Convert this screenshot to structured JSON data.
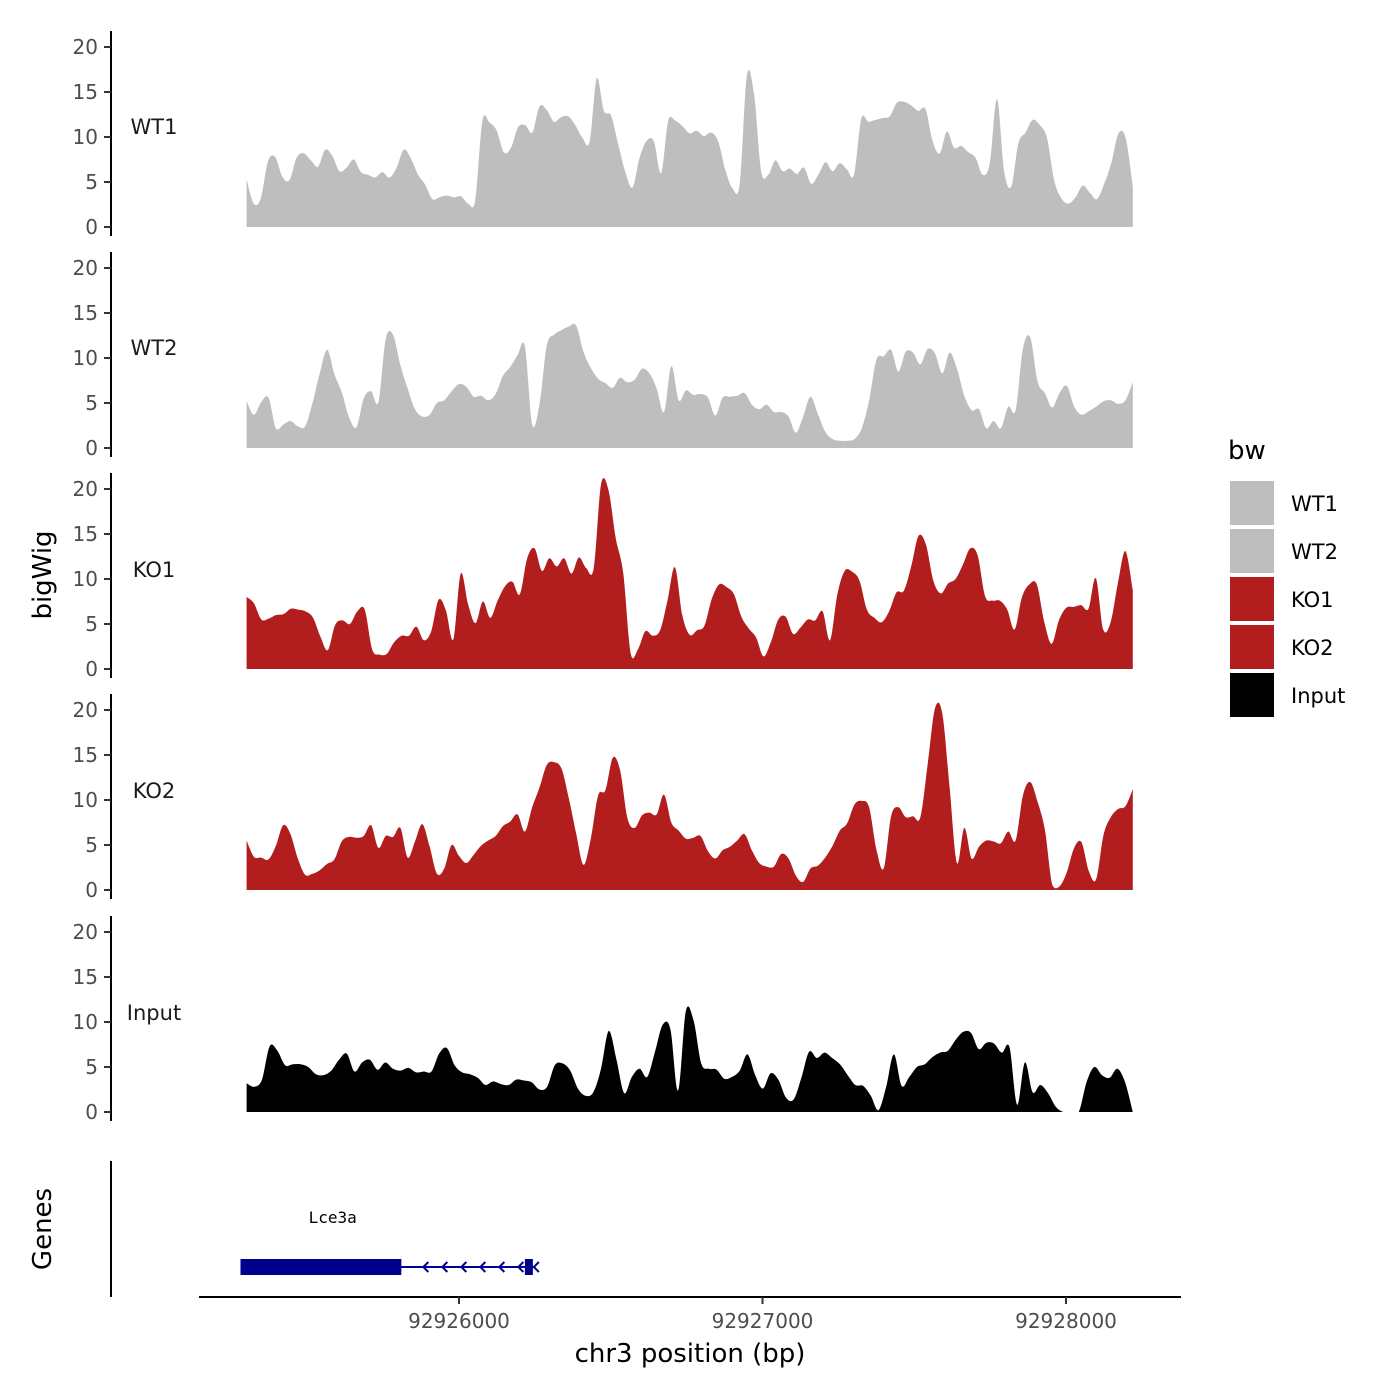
{
  "chart_data": {
    "type": "area",
    "title": "",
    "xlabel": "chr3 position (bp)",
    "ylabel": "bigWig",
    "genes_label": "Genes",
    "legend_title": "bw",
    "legend_position": "right",
    "xlim": [
      92925220,
      92928400
    ],
    "x_ticks": [
      92926000,
      92927000,
      92928000
    ],
    "x_tick_labels": [
      "92926000",
      "92927000",
      "92928000"
    ],
    "ylim": [
      0,
      21
    ],
    "y_ticks": [
      0,
      5,
      10,
      15,
      20
    ],
    "y_tick_labels": [
      "0",
      "5",
      "10",
      "15",
      "20"
    ],
    "x_start": 92925300,
    "x_end": 92928220,
    "series": [
      {
        "name": "WT1",
        "color": "#bebebe",
        "values": [
          5.3,
          2.6,
          3.2,
          7.3,
          7.8,
          5.6,
          5.2,
          7.7,
          8.2,
          7.4,
          6.7,
          8.6,
          7.9,
          6.2,
          6.6,
          7.5,
          6.1,
          5.8,
          5.5,
          6.1,
          5.5,
          6.6,
          8.6,
          7.6,
          5.8,
          4.7,
          3.1,
          3.3,
          3.5,
          3.3,
          3.4,
          2.6,
          3.0,
          11.8,
          11.6,
          10.7,
          8.3,
          8.8,
          11.1,
          11.3,
          10.5,
          13.4,
          13.0,
          11.7,
          12.2,
          12.3,
          11.3,
          9.9,
          9.5,
          16.5,
          12.9,
          12.4,
          9.2,
          6.1,
          4.4,
          7.7,
          9.6,
          9.5,
          6.0,
          11.8,
          11.8,
          11.2,
          10.4,
          10.7,
          10.1,
          10.5,
          9.5,
          6.3,
          4.3,
          4.8,
          16.8,
          14.8,
          6.2,
          5.8,
          7.4,
          6.2,
          6.5,
          5.9,
          6.6,
          4.8,
          5.8,
          7.2,
          6.2,
          7.1,
          6.4,
          5.8,
          12.0,
          11.7,
          11.9,
          12.1,
          12.3,
          13.8,
          13.9,
          13.5,
          12.9,
          13.1,
          9.5,
          8.2,
          10.6,
          8.8,
          9.0,
          8.3,
          7.7,
          5.8,
          7.1,
          14.2,
          6.2,
          4.5,
          9.3,
          10.5,
          11.9,
          11.3,
          9.9,
          5.2,
          3.2,
          2.6,
          3.3,
          4.6,
          3.8,
          3.1,
          4.8,
          7.1,
          10.4,
          9.9,
          4.5
        ]
      },
      {
        "name": "WT2",
        "color": "#bebebe",
        "values": [
          5.2,
          3.7,
          5.1,
          5.6,
          2.2,
          2.6,
          3.0,
          2.4,
          2.4,
          5.0,
          8.3,
          10.9,
          8.2,
          6.2,
          3.4,
          2.3,
          5.5,
          6.3,
          5.1,
          12.1,
          12.6,
          9.2,
          6.6,
          4.3,
          3.5,
          3.7,
          5.0,
          5.3,
          6.3,
          7.1,
          6.8,
          5.7,
          5.8,
          5.3,
          6.0,
          8.0,
          9.0,
          10.3,
          11.3,
          2.6,
          4.9,
          11.4,
          12.6,
          13.1,
          13.5,
          13.6,
          10.7,
          8.9,
          7.7,
          7.2,
          6.7,
          7.8,
          7.3,
          7.6,
          8.8,
          8.3,
          6.6,
          4.0,
          9.1,
          5.3,
          6.4,
          5.9,
          6.0,
          5.6,
          3.6,
          5.6,
          5.7,
          5.8,
          6.1,
          4.8,
          4.3,
          4.8,
          4.0,
          4.0,
          3.5,
          1.7,
          3.5,
          5.7,
          3.8,
          1.8,
          1.0,
          0.8,
          0.8,
          1.0,
          2.2,
          5.3,
          9.8,
          10.2,
          10.9,
          8.5,
          10.7,
          10.6,
          9.3,
          11.0,
          10.5,
          8.3,
          10.6,
          8.8,
          5.8,
          4.2,
          4.3,
          2.2,
          3.0,
          2.2,
          4.6,
          4.2,
          11.0,
          12.3,
          7.4,
          6.1,
          4.5,
          6.1,
          6.9,
          4.6,
          3.7,
          4.1,
          4.6,
          5.2,
          5.3,
          4.9,
          5.3,
          7.3
        ]
      },
      {
        "name": "KO1",
        "color": "#b21e1e",
        "values": [
          8.0,
          7.3,
          5.5,
          5.6,
          6.0,
          6.1,
          6.7,
          6.6,
          6.4,
          5.7,
          3.6,
          2.1,
          4.9,
          5.4,
          5.0,
          6.4,
          6.6,
          2.2,
          1.6,
          1.7,
          3.0,
          3.7,
          3.7,
          4.7,
          3.2,
          4.2,
          7.7,
          6.5,
          3.3,
          10.6,
          7.2,
          5.1,
          7.5,
          5.7,
          7.6,
          9.2,
          9.7,
          8.3,
          12.3,
          13.4,
          10.9,
          12.3,
          11.4,
          12.3,
          10.6,
          12.4,
          11.2,
          11.2,
          20.5,
          19.9,
          14.5,
          10.7,
          1.8,
          2.2,
          4.2,
          3.7,
          4.3,
          7.6,
          11.3,
          6.0,
          3.8,
          4.3,
          4.8,
          7.8,
          9.4,
          9.1,
          8.3,
          5.8,
          4.5,
          3.5,
          1.4,
          3.0,
          5.5,
          5.8,
          3.9,
          4.6,
          5.5,
          5.4,
          6.4,
          3.2,
          8.3,
          10.9,
          10.8,
          9.8,
          6.6,
          5.7,
          5.2,
          6.4,
          8.5,
          8.7,
          11.4,
          14.8,
          13.8,
          9.8,
          8.4,
          9.5,
          10.0,
          11.6,
          13.4,
          12.6,
          8.1,
          7.6,
          7.6,
          6.6,
          4.4,
          8.0,
          9.4,
          9.4,
          5.3,
          2.8,
          5.4,
          6.8,
          6.9,
          7.1,
          6.7,
          10.1,
          4.4,
          5.2,
          9.6,
          13.1,
          8.8
        ]
      },
      {
        "name": "KO2",
        "color": "#b21e1e",
        "values": [
          5.5,
          3.7,
          3.6,
          3.4,
          4.9,
          7.2,
          6.2,
          3.5,
          1.7,
          1.8,
          2.2,
          2.9,
          3.4,
          5.4,
          5.9,
          5.8,
          6.0,
          7.2,
          4.7,
          6.0,
          5.9,
          6.9,
          3.6,
          5.4,
          7.3,
          4.8,
          1.8,
          2.4,
          5.0,
          3.8,
          3.0,
          3.9,
          4.9,
          5.5,
          6.0,
          7.1,
          7.6,
          8.4,
          6.5,
          9.2,
          11.4,
          13.9,
          14.2,
          13.5,
          10.2,
          6.3,
          2.8,
          5.7,
          10.5,
          11.1,
          14.7,
          13.3,
          8.0,
          6.9,
          8.3,
          8.6,
          8.4,
          10.6,
          7.5,
          6.6,
          5.7,
          5.8,
          6.0,
          4.3,
          3.5,
          4.4,
          4.8,
          5.5,
          6.2,
          4.4,
          3.0,
          2.6,
          2.6,
          4.0,
          3.5,
          1.6,
          0.9,
          2.4,
          2.7,
          3.6,
          4.9,
          6.6,
          7.4,
          9.5,
          9.9,
          9.2,
          4.5,
          2.4,
          8.2,
          9.2,
          8.1,
          8.2,
          8.1,
          14.0,
          20.2,
          19.6,
          11.3,
          3.0,
          6.9,
          3.5,
          4.8,
          5.5,
          5.4,
          5.2,
          6.5,
          5.5,
          10.5,
          12.0,
          9.8,
          6.7,
          0.6,
          0.4,
          2.0,
          4.7,
          5.3,
          2.1,
          1.2,
          6.1,
          8.1,
          9.0,
          9.3,
          11.2
        ]
      },
      {
        "name": "Input",
        "color": "#000000",
        "values": [
          3.2,
          2.8,
          3.6,
          7.3,
          6.8,
          5.2,
          5.3,
          5.3,
          5.0,
          4.2,
          4.1,
          4.6,
          5.8,
          6.5,
          4.5,
          5.5,
          5.8,
          4.7,
          5.5,
          4.8,
          4.6,
          4.9,
          4.4,
          4.5,
          4.5,
          6.5,
          7.1,
          5.2,
          4.4,
          4.2,
          3.8,
          3.0,
          3.4,
          3.1,
          3.0,
          3.6,
          3.5,
          3.3,
          2.5,
          2.8,
          5.2,
          5.4,
          4.6,
          2.6,
          1.8,
          2.2,
          4.8,
          9.0,
          5.8,
          2.1,
          3.9,
          4.8,
          3.9,
          6.7,
          9.7,
          9.2,
          2.4,
          11.2,
          10.2,
          5.4,
          4.8,
          4.7,
          3.7,
          3.9,
          4.6,
          6.4,
          4.1,
          2.6,
          4.3,
          3.6,
          1.6,
          1.4,
          3.8,
          6.7,
          6.0,
          6.6,
          6.0,
          5.3,
          4.1,
          3.0,
          2.9,
          1.8,
          0.2,
          2.8,
          6.4,
          2.9,
          3.9,
          5.0,
          5.3,
          6.1,
          6.6,
          6.8,
          8.0,
          8.9,
          8.8,
          7.0,
          7.7,
          7.6,
          6.6,
          7.2,
          0.8,
          5.5,
          2.2,
          3.0,
          2.1,
          0.6,
          0.0,
          0.0,
          0.0,
          3.3,
          5.0,
          4.1,
          3.8,
          4.8,
          3.3,
          0.0
        ]
      }
    ],
    "genes": [
      {
        "name": "Lce3a",
        "start": 92925280,
        "end": 92926250,
        "thick_start": 92925280,
        "thick_end": 92925810,
        "strand": "-",
        "color": "#00008b"
      }
    ]
  }
}
